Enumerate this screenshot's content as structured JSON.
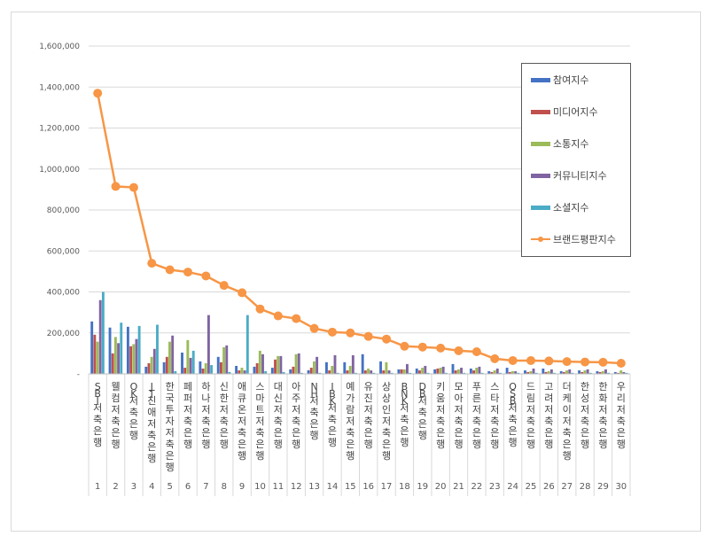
{
  "chart_data": {
    "type": "bar",
    "combo": "clustered bar + line",
    "title": "",
    "xlabel": "",
    "ylabel": "",
    "ylim": [
      0,
      1600000
    ],
    "yticks": [
      "-",
      "200,000",
      "400,000",
      "600,000",
      "800,000",
      "1,000,000",
      "1,200,000",
      "1,400,000",
      "1,600,000"
    ],
    "grid": true,
    "legend_position": "right-inside",
    "categories": [
      "SBI저축은행",
      "웰컴저축은행",
      "OK저축은행",
      "JT친애저축은행",
      "한국투자저축은행",
      "페퍼저축은행",
      "하나저축은행",
      "신한저축은행",
      "애큐온저축은행",
      "스마트저축은행",
      "대신저축은행",
      "아주저축은행",
      "NH저축은행",
      "IBK저축은행",
      "예가람저축은행",
      "유진저축은행",
      "상상인저축은행",
      "BNK저축은행",
      "DB저축은행",
      "키움저축은행",
      "모아저축은행",
      "푸른저축은행",
      "스타저축은행",
      "OSB저축은행",
      "드림저축은행",
      "고려저축은행",
      "더케이저축은행",
      "한성저축은행",
      "한화저축은행",
      "우리저축은행"
    ],
    "rank_numbers": [
      "1",
      "2",
      "3",
      "4",
      "5",
      "6",
      "7",
      "8",
      "9",
      "10",
      "11",
      "12",
      "13",
      "14",
      "15",
      "16",
      "17",
      "18",
      "19",
      "20",
      "21",
      "22",
      "23",
      "24",
      "25",
      "26",
      "27",
      "28",
      "29",
      "30"
    ],
    "series": [
      {
        "name": "참여지수",
        "type": "bar",
        "color": "#4472C4",
        "values": [
          256000,
          226000,
          230000,
          35000,
          57000,
          104000,
          61000,
          83000,
          39000,
          35000,
          30000,
          22000,
          18000,
          57000,
          57000,
          96000,
          61000,
          22000,
          26000,
          22000,
          48000,
          26000,
          13000,
          30000,
          17000,
          26000,
          13000,
          17000,
          13000,
          9000
        ]
      },
      {
        "name": "미디어지수",
        "type": "bar",
        "color": "#C0504D",
        "values": [
          191000,
          100000,
          135000,
          52000,
          83000,
          30000,
          26000,
          57000,
          17000,
          52000,
          70000,
          35000,
          30000,
          17000,
          17000,
          17000,
          17000,
          22000,
          17000,
          26000,
          17000,
          17000,
          9000,
          9000,
          9000,
          9000,
          9000,
          9000,
          9000,
          5000
        ]
      },
      {
        "name": "소통지수",
        "type": "bar",
        "color": "#9BBB59",
        "values": [
          157000,
          180000,
          145000,
          83000,
          157000,
          165000,
          52000,
          130000,
          30000,
          113000,
          87000,
          96000,
          61000,
          39000,
          39000,
          26000,
          57000,
          22000,
          30000,
          30000,
          22000,
          30000,
          17000,
          13000,
          13000,
          13000,
          17000,
          17000,
          13000,
          17000
        ]
      },
      {
        "name": "커뮤니티지수",
        "type": "bar",
        "color": "#8064A2",
        "values": [
          360000,
          150000,
          170000,
          122000,
          187000,
          78000,
          287000,
          139000,
          17000,
          96000,
          87000,
          100000,
          83000,
          91000,
          91000,
          17000,
          17000,
          48000,
          39000,
          35000,
          30000,
          35000,
          26000,
          13000,
          26000,
          22000,
          22000,
          22000,
          22000,
          9000
        ]
      },
      {
        "name": "소셜지수",
        "type": "bar",
        "color": "#4BACC6",
        "values": [
          400000,
          250000,
          234000,
          240000,
          13000,
          113000,
          43000,
          9000,
          287000,
          13000,
          9000,
          5000,
          5000,
          5000,
          5000,
          5000,
          5000,
          5000,
          5000,
          5000,
          5000,
          5000,
          5000,
          5000,
          5000,
          5000,
          5000,
          5000,
          5000,
          5000
        ]
      },
      {
        "name": "브랜드평판지수",
        "type": "line",
        "color": "#F79646",
        "values": [
          1370000,
          915000,
          910000,
          540000,
          508000,
          497000,
          478000,
          432000,
          396000,
          317000,
          283000,
          270000,
          222000,
          204000,
          200000,
          183000,
          170000,
          135000,
          131000,
          126000,
          113000,
          108000,
          74000,
          65000,
          65000,
          63000,
          60000,
          58000,
          57000,
          52000
        ]
      }
    ]
  },
  "legend": {
    "items": [
      {
        "label": "참여지수",
        "color": "#4472C4",
        "kind": "bar"
      },
      {
        "label": "미디어지수",
        "color": "#C0504D",
        "kind": "bar"
      },
      {
        "label": "소통지수",
        "color": "#9BBB59",
        "kind": "bar"
      },
      {
        "label": "커뮤니티지수",
        "color": "#8064A2",
        "kind": "bar"
      },
      {
        "label": "소셜지수",
        "color": "#4BACC6",
        "kind": "bar"
      },
      {
        "label": "브랜드평판지수",
        "color": "#F79646",
        "kind": "line"
      }
    ]
  }
}
